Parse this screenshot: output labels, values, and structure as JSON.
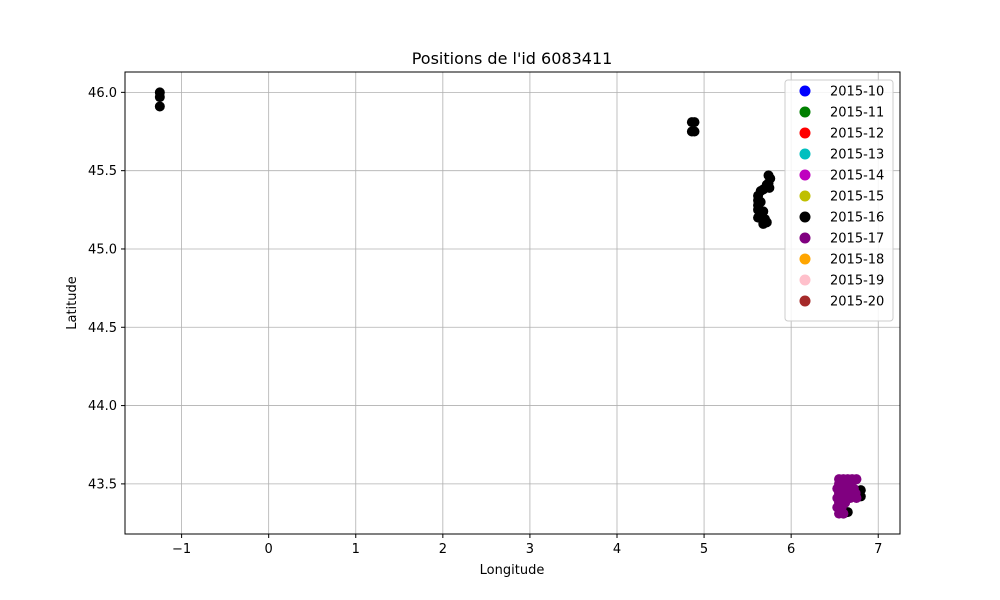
{
  "chart_data": {
    "type": "scatter",
    "title": "Positions de l'id 6083411",
    "xlabel": "Longitude",
    "ylabel": "Latitude",
    "xlim": [
      -1.65,
      7.25
    ],
    "ylim": [
      43.18,
      46.13
    ],
    "xticks": [
      -1,
      0,
      1,
      2,
      3,
      4,
      5,
      6,
      7
    ],
    "yticks": [
      43.5,
      44.0,
      44.5,
      45.0,
      45.5,
      46.0
    ],
    "ytick_labels": [
      "43.5",
      "44.0",
      "44.5",
      "45.0",
      "45.5",
      "46.0"
    ],
    "grid": true,
    "legend_position": "top-right",
    "series": [
      {
        "name": "2015-10",
        "color": "#0000ff",
        "points": []
      },
      {
        "name": "2015-11",
        "color": "#008000",
        "points": []
      },
      {
        "name": "2015-12",
        "color": "#ff0000",
        "points": []
      },
      {
        "name": "2015-13",
        "color": "#00bfbf",
        "points": []
      },
      {
        "name": "2015-14",
        "color": "#bf00bf",
        "points": []
      },
      {
        "name": "2015-15",
        "color": "#bfbf00",
        "points": []
      },
      {
        "name": "2015-16",
        "color": "#000000",
        "points": [
          [
            -1.25,
            46.0
          ],
          [
            -1.25,
            45.97
          ],
          [
            -1.25,
            45.91
          ],
          [
            4.86,
            45.81
          ],
          [
            4.89,
            45.81
          ],
          [
            4.86,
            45.75
          ],
          [
            4.89,
            45.75
          ],
          [
            5.74,
            45.47
          ],
          [
            5.76,
            45.45
          ],
          [
            5.74,
            45.42
          ],
          [
            5.72,
            45.41
          ],
          [
            5.75,
            45.39
          ],
          [
            5.68,
            45.38
          ],
          [
            5.65,
            45.37
          ],
          [
            5.62,
            45.34
          ],
          [
            5.62,
            45.31
          ],
          [
            5.65,
            45.3
          ],
          [
            5.62,
            45.28
          ],
          [
            5.62,
            45.25
          ],
          [
            5.68,
            45.24
          ],
          [
            5.65,
            45.22
          ],
          [
            5.62,
            45.2
          ],
          [
            5.7,
            45.19
          ],
          [
            5.72,
            45.17
          ],
          [
            5.68,
            45.16
          ],
          [
            6.55,
            43.46
          ],
          [
            6.62,
            43.46
          ],
          [
            6.72,
            43.46
          ],
          [
            6.8,
            43.46
          ],
          [
            6.78,
            43.44
          ],
          [
            6.8,
            43.42
          ],
          [
            6.75,
            43.42
          ],
          [
            6.6,
            43.31
          ],
          [
            6.65,
            43.32
          ]
        ]
      },
      {
        "name": "2015-17",
        "color": "#800080",
        "points": [
          [
            6.55,
            43.53
          ],
          [
            6.6,
            43.53
          ],
          [
            6.65,
            43.53
          ],
          [
            6.7,
            43.53
          ],
          [
            6.75,
            43.53
          ],
          [
            6.55,
            43.5
          ],
          [
            6.62,
            43.5
          ],
          [
            6.68,
            43.5
          ],
          [
            6.53,
            43.47
          ],
          [
            6.58,
            43.47
          ],
          [
            6.65,
            43.47
          ],
          [
            6.72,
            43.47
          ],
          [
            6.55,
            43.44
          ],
          [
            6.6,
            43.44
          ],
          [
            6.67,
            43.44
          ],
          [
            6.74,
            43.44
          ],
          [
            6.53,
            43.41
          ],
          [
            6.6,
            43.41
          ],
          [
            6.68,
            43.41
          ],
          [
            6.75,
            43.41
          ],
          [
            6.55,
            43.38
          ],
          [
            6.62,
            43.38
          ],
          [
            6.53,
            43.35
          ],
          [
            6.58,
            43.35
          ],
          [
            6.55,
            43.31
          ],
          [
            6.6,
            43.31
          ]
        ]
      },
      {
        "name": "2015-18",
        "color": "#ffa500",
        "points": []
      },
      {
        "name": "2015-19",
        "color": "#ffc0cb",
        "points": []
      },
      {
        "name": "2015-20",
        "color": "#a52a2a",
        "points": []
      }
    ]
  }
}
